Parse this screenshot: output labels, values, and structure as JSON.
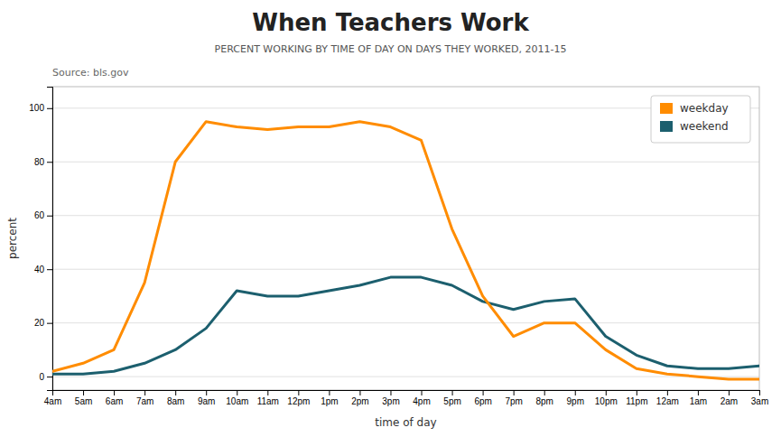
{
  "chart_data": {
    "type": "line",
    "title": "When Teachers Work",
    "subtitle": "PERCENT WORKING BY TIME OF DAY ON DAYS THEY WORKED, 2011-15",
    "annotations": [
      "Source: bls.gov"
    ],
    "x_label": "time of day",
    "y_label": "percent",
    "categories": [
      "4am",
      "5am",
      "6am",
      "7am",
      "8am",
      "9am",
      "10am",
      "11am",
      "12pm",
      "1pm",
      "2pm",
      "3pm",
      "4pm",
      "5pm",
      "6pm",
      "7pm",
      "8pm",
      "9pm",
      "10pm",
      "11pm",
      "12am",
      "1am",
      "2am",
      "3am"
    ],
    "series": [
      {
        "name": "weekday",
        "color": "#FF8C00",
        "values": [
          2,
          5,
          10,
          35,
          80,
          95,
          93,
          92,
          93,
          93,
          95,
          93,
          88,
          55,
          30,
          15,
          20,
          20,
          10,
          3,
          1,
          0,
          -1,
          -1
        ]
      },
      {
        "name": "weekend",
        "color": "#1C5F6E",
        "values": [
          1,
          1,
          2,
          5,
          10,
          18,
          32,
          30,
          30,
          32,
          34,
          37,
          37,
          34,
          28,
          25,
          28,
          29,
          15,
          8,
          4,
          3,
          3,
          4
        ]
      }
    ],
    "ylim": [
      -5,
      108
    ],
    "yticks": [
      0,
      20,
      40,
      60,
      80,
      100
    ],
    "grid": true,
    "legend": "upper right"
  }
}
